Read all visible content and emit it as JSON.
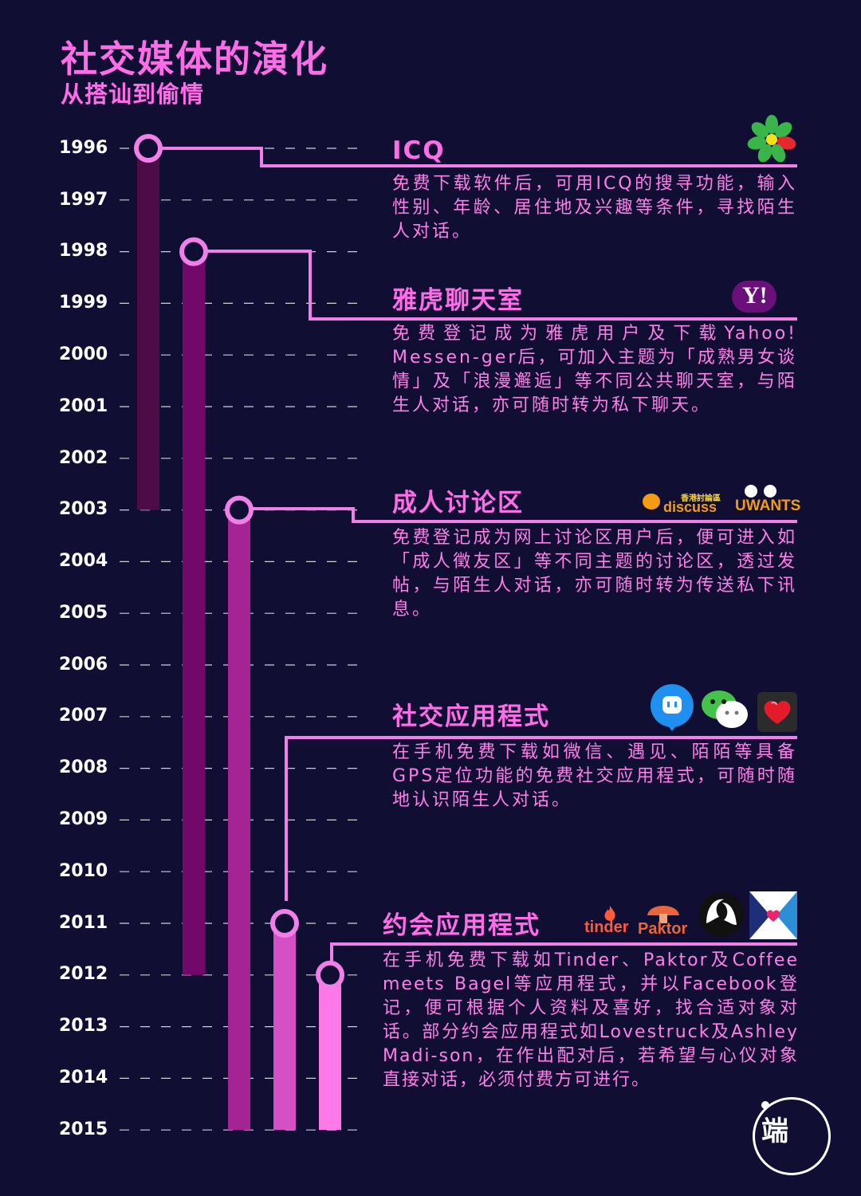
{
  "header": {
    "title": "社交媒体的演化",
    "subtitle": "从搭讪到偷情"
  },
  "timeline": {
    "years": [
      "1996",
      "1997",
      "1998",
      "1999",
      "2000",
      "2001",
      "2002",
      "2003",
      "2004",
      "2005",
      "2006",
      "2007",
      "2008",
      "2009",
      "2010",
      "2011",
      "2012",
      "2013",
      "2014",
      "2015"
    ],
    "bars": [
      {
        "start": 1996,
        "end": 2003,
        "color": "#4d0c47"
      },
      {
        "start": 1998,
        "end": 2012,
        "color": "#74086a"
      },
      {
        "start": 2003,
        "end": 2015,
        "color": "#a52495"
      },
      {
        "start": 2011,
        "end": 2015,
        "color": "#d650c5"
      },
      {
        "start": 2012,
        "end": 2015,
        "color": "#ff78e8"
      }
    ]
  },
  "entries": [
    {
      "title": "ICQ",
      "description": "免费下载软件后，可用ICQ的搜寻功能，输入性别、年龄、居住地及兴趣等条件，寻找陌生人对话。"
    },
    {
      "title": "雅虎聊天室",
      "description": "免费登记成为雅虎用户及下载Yahoo! Messen-ger后，可加入主题为「成熟男女谈情」及「浪漫邂逅」等不同公共聊天室，与陌生人对话，亦可随时转为私下聊天。"
    },
    {
      "title": "成人讨论区",
      "description": "免费登记成为网上讨论区用户后，便可进入如「成人徵友区」等不同主题的讨论区，透过发帖，与陌生人对话，亦可随时转为传送私下讯息。"
    },
    {
      "title": "社交应用程式",
      "description": "在手机免费下载如微信、遇见、陌陌等具备GPS定位功能的免费社交应用程式，可随时随地认识陌生人对话。"
    },
    {
      "title": "约会应用程式",
      "description": "在手机免费下载如Tinder、Paktor及Coffee meets Bagel等应用程式，并以Facebook登记，便可根据个人资料及喜好，找合适对象对话。部分约会应用程式如Lovestruck及Ashley Madi-son，在作出配对后，若希望与心仪对象直接对话，必须付费方可进行。"
    }
  ],
  "logos": {
    "yahoo": "Y!",
    "discuss_small": "香港討論區",
    "discuss": "discuss",
    "uwants": "UWANTS",
    "tinder": "tinder",
    "paktor": "Paktor"
  },
  "brand": {
    "mark": "端"
  },
  "colors": {
    "background": "#100f33",
    "accent": "#ff6ce8",
    "connector": "#f07fe8",
    "dash": "#ffffff"
  }
}
